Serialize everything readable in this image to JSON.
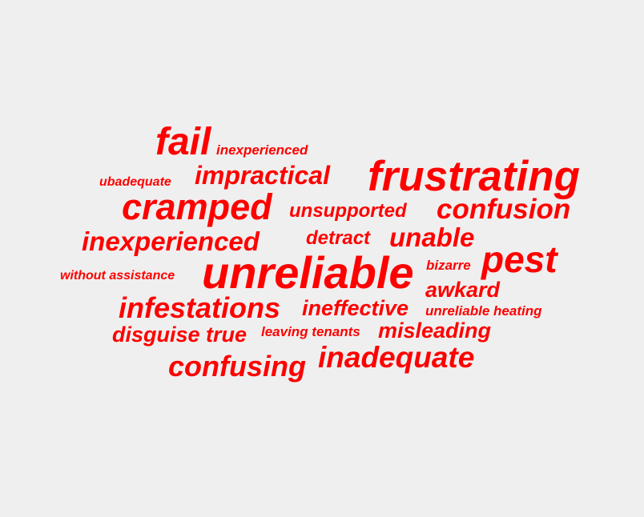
{
  "word_cloud": {
    "color": "#ff0000",
    "background": "#efefef",
    "words": {
      "fail": "fail",
      "inexperienced_1": "inexperienced",
      "ubadequate": "ubadequate",
      "impractical": "impractical",
      "frustrating": "frustrating",
      "cramped": "cramped",
      "unsupported": "unsupported",
      "confusion": "confusion",
      "inexperienced_2": "inexperienced",
      "detract": "detract",
      "unable": "unable",
      "without_assistance": "without assistance",
      "unreliable": "unreliable",
      "bizarre": "bizarre",
      "pest": "pest",
      "awkard": "awkard",
      "infestations": "infestations",
      "ineffective": "ineffective",
      "unreliable_heating": "unreliable heating",
      "disguise_true": "disguise true",
      "leaving_tenants": "leaving tenants",
      "misleading": "misleading",
      "confusing": "confusing",
      "inadequate": "inadequate"
    }
  }
}
